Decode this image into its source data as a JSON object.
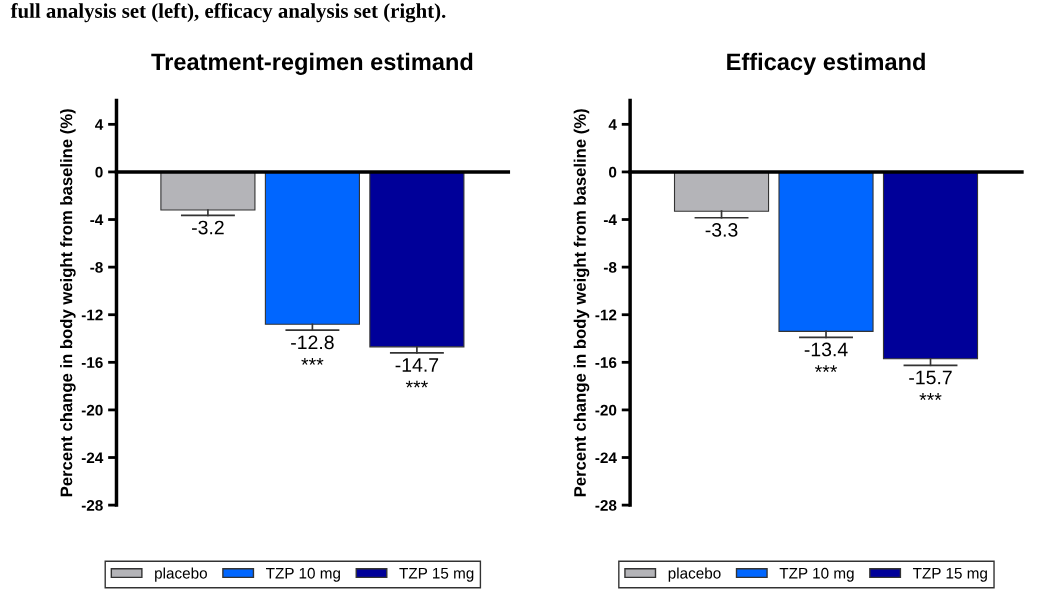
{
  "chart_data": [
    {
      "type": "bar",
      "title": "Treatment-regimen estimand",
      "ylabel": "Percent change in body weight from baseline (%)",
      "categories": [
        null
      ],
      "series": [
        {
          "name": "placebo",
          "color": "#b4b4b8",
          "values": [
            -3.2
          ],
          "errors": [
            0.45
          ],
          "value_labels": [
            "-3.2"
          ]
        },
        {
          "name": "TZP 10 mg",
          "color": "#0066ff",
          "values": [
            -12.8
          ],
          "errors": [
            0.5
          ],
          "value_labels": [
            "-12.8\n***"
          ]
        },
        {
          "name": "TZP 15 mg",
          "color": "#000099",
          "values": [
            -14.7
          ],
          "errors": [
            0.5
          ],
          "value_labels": [
            "-14.7\n***"
          ]
        }
      ],
      "ylim": [
        -28,
        6
      ],
      "yticks": [
        4,
        0,
        -4,
        -8,
        -12,
        -16,
        -20,
        -24,
        -28
      ],
      "legend": "bottom",
      "annotations": [
        "full analysis set (left), efficacy analysis set (right)."
      ]
    },
    {
      "type": "bar",
      "title": "Efficacy estimand",
      "ylabel": "Percent change in body weight from baseline (%)",
      "categories": [
        null
      ],
      "series": [
        {
          "name": "placebo",
          "color": "#b4b4b8",
          "values": [
            -3.3
          ],
          "errors": [
            0.55
          ],
          "value_labels": [
            "-3.3"
          ]
        },
        {
          "name": "TZP 10 mg",
          "color": "#0066ff",
          "values": [
            -13.4
          ],
          "errors": [
            0.5
          ],
          "value_labels": [
            "-13.4\n***"
          ]
        },
        {
          "name": "TZP 15 mg",
          "color": "#000099",
          "values": [
            -15.7
          ],
          "errors": [
            0.55
          ],
          "value_labels": [
            "-15.7\n***"
          ]
        }
      ],
      "ylim": [
        -28,
        6
      ],
      "yticks": [
        4,
        0,
        -4,
        -8,
        -12,
        -16,
        -20,
        -24,
        -28
      ],
      "legend": "bottom"
    }
  ]
}
